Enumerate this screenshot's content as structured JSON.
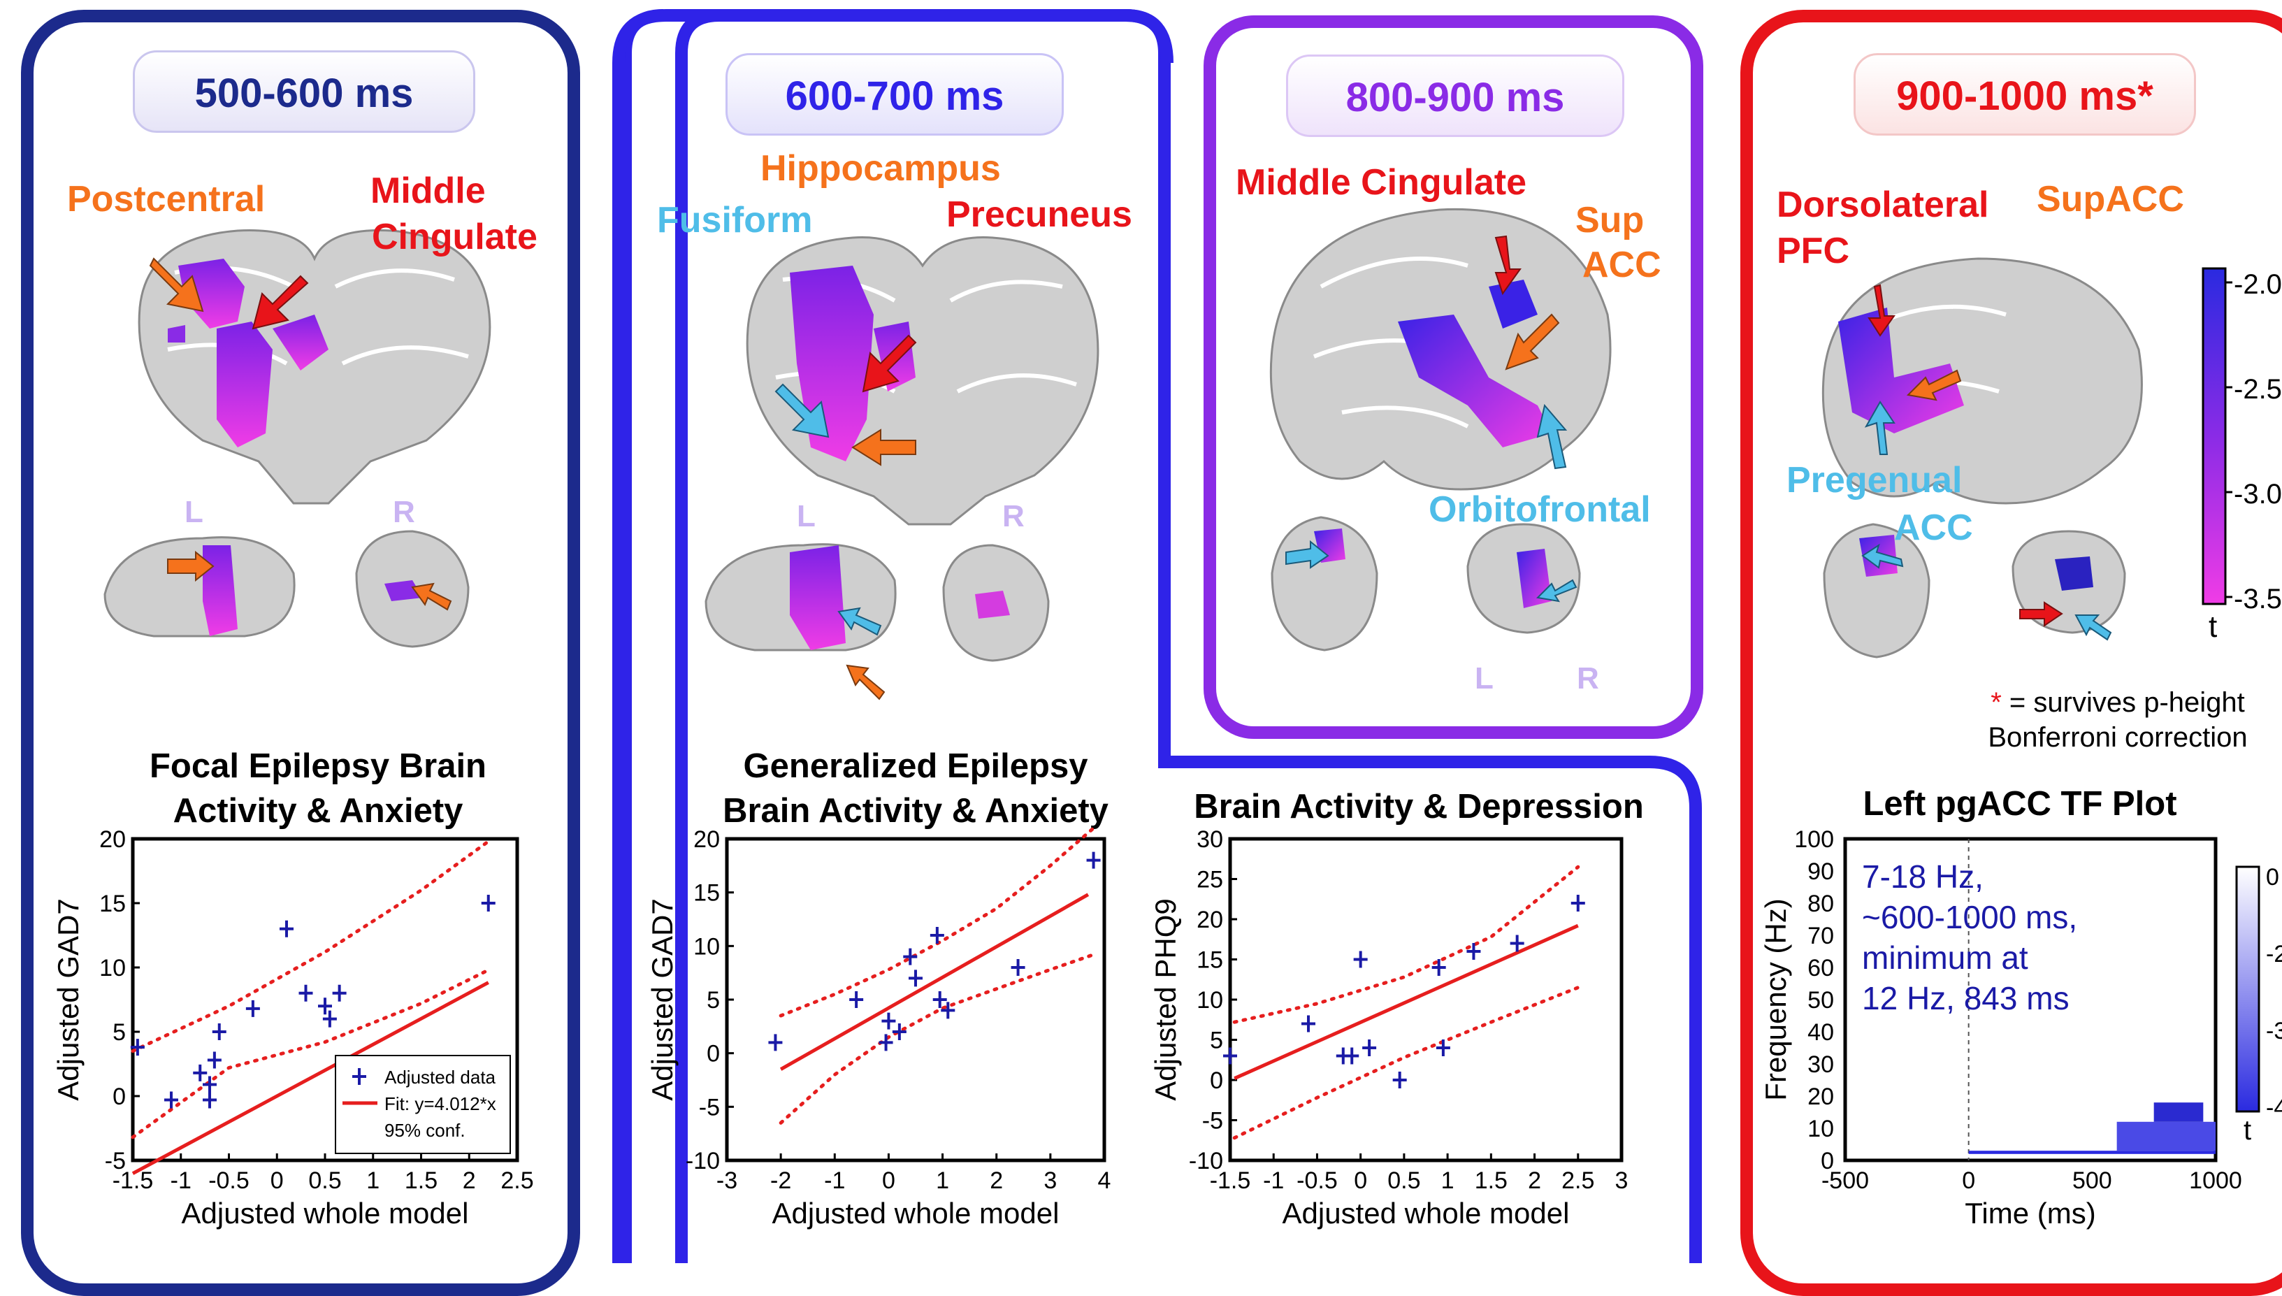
{
  "colors": {
    "panel1": "#1c2a8c",
    "panel2": "#2f23e8",
    "panel3": "#8a2be6",
    "panel4": "#e8141a",
    "orange": "#f5721c",
    "red": "#e8141a",
    "blue": "#4fbde8",
    "purple_text": "#8a2be6",
    "lr_label": "#c9b3f2",
    "fit_line": "#e61e1e",
    "data_marker": "#1a1aa6"
  },
  "panels": [
    {
      "time": "500-600 ms",
      "regions": [
        "Postcentral",
        "Middle",
        "Cingulate"
      ],
      "left_label": "L",
      "right_label": "R",
      "plot_title": [
        "Focal Epilepsy Brain",
        "Activity & Anxiety"
      ],
      "legend": [
        "Adjusted data",
        "Fit: y=4.012*x",
        "95% conf."
      ]
    },
    {
      "time": "600-700 ms",
      "regions": [
        "Hippocampus",
        "Fusiform",
        "Precuneus"
      ],
      "left_label": "L",
      "right_label": "R",
      "plot_title": [
        "Generalized Epilepsy",
        "Brain Activity & Anxiety"
      ]
    },
    {
      "time": "800-900 ms",
      "regions": [
        "Middle Cingulate",
        "Sup",
        "ACC",
        "Orbitofrontal"
      ],
      "left_label": "L",
      "right_label": "R",
      "plot_title": [
        "Brain Activity & Depression"
      ]
    },
    {
      "time": "900-1000 ms*",
      "regions": [
        "Dorsolateral",
        "PFC",
        "SupACC",
        "Pregenual",
        "ACC"
      ],
      "colorbar_ticks": [
        "-2.0",
        "-2.5",
        "-3.0",
        "-3.5"
      ],
      "colorbar_label": "t",
      "note_star": "*",
      "note": [
        "= survives p-height",
        "Bonferroni correction"
      ],
      "plot_title": [
        "Left pgACC TF Plot"
      ],
      "tf_annotation": [
        "7-18 Hz,",
        "~600-1000 ms,",
        "minimum at",
        "12 Hz, 843 ms"
      ],
      "tf_colorbar_ticks": [
        "0",
        "-2",
        "-3",
        "-4"
      ],
      "tf_colorbar_label": "t"
    }
  ],
  "chart_data": [
    {
      "type": "scatter",
      "xlabel": "Adjusted whole model",
      "ylabel": "Adjusted GAD7",
      "xlim": [
        -1.5,
        2.5
      ],
      "ylim": [
        -5,
        20
      ],
      "xticks": [
        "-1.5",
        "-1",
        "-0.5",
        "0",
        "0.5",
        "1",
        "1.5",
        "2",
        "2.5"
      ],
      "yticks": [
        "-5",
        "0",
        "5",
        "10",
        "15",
        "20"
      ],
      "points": [
        [
          -1.45,
          3.8
        ],
        [
          -1.1,
          -0.3
        ],
        [
          -0.8,
          1.8
        ],
        [
          -0.7,
          0.9
        ],
        [
          -0.7,
          -0.3
        ],
        [
          -0.65,
          2.8
        ],
        [
          -0.6,
          5
        ],
        [
          -0.25,
          6.8
        ],
        [
          0.1,
          13
        ],
        [
          0.3,
          8
        ],
        [
          0.5,
          7
        ],
        [
          0.55,
          6
        ],
        [
          0.65,
          8
        ],
        [
          2.2,
          15
        ]
      ],
      "fit": {
        "slope": 4.012,
        "x": [
          -1.5,
          2.2
        ]
      },
      "conf_upper": [
        [
          -1.5,
          3.5
        ],
        [
          -0.5,
          7
        ],
        [
          0.5,
          11.2
        ],
        [
          1.5,
          16
        ],
        [
          2.2,
          19.8
        ]
      ],
      "conf_lower": [
        [
          -1.5,
          -3.2
        ],
        [
          -0.5,
          2.2
        ],
        [
          0.5,
          4.2
        ],
        [
          1.5,
          7.2
        ],
        [
          2.2,
          9.8
        ]
      ],
      "legend": {
        "series": [
          "Adjusted data",
          "Fit: y=4.012*x",
          "95% conf."
        ]
      }
    },
    {
      "type": "scatter",
      "xlabel": "Adjusted whole model",
      "ylabel": "Adjusted GAD7",
      "xlim": [
        -3,
        4
      ],
      "ylim": [
        -10,
        20
      ],
      "xticks": [
        "-3",
        "-2",
        "-1",
        "0",
        "1",
        "2",
        "3",
        "4"
      ],
      "yticks": [
        "-10",
        "-5",
        "0",
        "5",
        "10",
        "15",
        "20"
      ],
      "points": [
        [
          -2.1,
          1
        ],
        [
          -0.6,
          5
        ],
        [
          -0.05,
          1
        ],
        [
          0.0,
          3
        ],
        [
          0.2,
          2
        ],
        [
          0.4,
          9
        ],
        [
          0.5,
          7
        ],
        [
          0.9,
          11
        ],
        [
          0.95,
          5
        ],
        [
          1.1,
          4
        ],
        [
          2.4,
          8
        ],
        [
          3.8,
          18
        ]
      ],
      "fit": {
        "x": [
          -2,
          3.7
        ],
        "y": [
          -1.5,
          14.8
        ]
      },
      "conf_upper": [
        [
          -2,
          3.5
        ],
        [
          -1,
          5.5
        ],
        [
          0,
          7.8
        ],
        [
          1,
          10.5
        ],
        [
          2,
          13.5
        ],
        [
          3,
          17.5
        ],
        [
          3.8,
          21
        ]
      ],
      "conf_lower": [
        [
          -2,
          -6.5
        ],
        [
          -1,
          -2
        ],
        [
          0,
          1.5
        ],
        [
          1,
          4.2
        ],
        [
          2,
          6
        ],
        [
          3,
          7.8
        ],
        [
          3.8,
          9.2
        ]
      ]
    },
    {
      "type": "scatter",
      "xlabel": "Adjusted whole model",
      "ylabel": "Adjusted PHQ9",
      "xlim": [
        -1.5,
        3
      ],
      "ylim": [
        -10,
        30
      ],
      "xticks": [
        "-1.5",
        "-1",
        "-0.5",
        "0",
        "0.5",
        "1",
        "1.5",
        "2",
        "2.5",
        "3"
      ],
      "yticks": [
        "-10",
        "-5",
        "0",
        "5",
        "10",
        "15",
        "20",
        "25",
        "30"
      ],
      "points": [
        [
          -1.5,
          3
        ],
        [
          -0.6,
          7
        ],
        [
          0.0,
          15
        ],
        [
          -0.2,
          3
        ],
        [
          -0.1,
          3
        ],
        [
          0.1,
          4
        ],
        [
          0.45,
          0
        ],
        [
          0.9,
          14
        ],
        [
          0.95,
          4
        ],
        [
          1.3,
          16
        ],
        [
          1.8,
          17
        ],
        [
          2.5,
          22
        ]
      ],
      "fit": {
        "x": [
          -1.45,
          2.5
        ],
        "y": [
          0.2,
          19.2
        ]
      },
      "conf_upper": [
        [
          -1.45,
          7.2
        ],
        [
          -0.5,
          9.5
        ],
        [
          0.5,
          12.8
        ],
        [
          1.5,
          17.8
        ],
        [
          2.5,
          26.5
        ]
      ],
      "conf_lower": [
        [
          -1.45,
          -7.2
        ],
        [
          -0.5,
          -2.2
        ],
        [
          0.5,
          2.8
        ],
        [
          1.5,
          7.2
        ],
        [
          2.5,
          11.5
        ]
      ]
    },
    {
      "type": "heatmap",
      "xlabel": "Time (ms)",
      "ylabel": "Frequency (Hz)",
      "xlim": [
        -500,
        1000
      ],
      "ylim": [
        0,
        100
      ],
      "xticks": [
        "-500",
        "0",
        "500",
        "1000"
      ],
      "yticks": [
        "0",
        "10",
        "20",
        "30",
        "40",
        "50",
        "60",
        "70",
        "80",
        "90",
        "100"
      ],
      "cluster": {
        "freq_hz": [
          7,
          18
        ],
        "time_ms": [
          600,
          1000
        ],
        "min_at_hz": 12,
        "min_at_ms": 843
      }
    }
  ]
}
